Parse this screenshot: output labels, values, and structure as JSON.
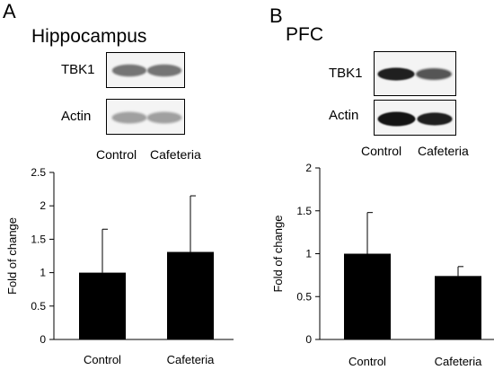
{
  "panels": [
    {
      "letter": "A",
      "region": "Hippocampus",
      "blots": [
        {
          "label": "TBK1",
          "bands": [
            {
              "intensity": 0.55
            },
            {
              "intensity": 0.55
            }
          ]
        },
        {
          "label": "Actin",
          "bands": [
            {
              "intensity": 0.35
            },
            {
              "intensity": 0.35
            }
          ]
        }
      ],
      "lanes": [
        "Control",
        "Cafeteria"
      ]
    },
    {
      "letter": "B",
      "region": "PFC",
      "blots": [
        {
          "label": "TBK1",
          "bands": [
            {
              "intensity": 0.95
            },
            {
              "intensity": 0.7
            }
          ]
        },
        {
          "label": "Actin",
          "bands": [
            {
              "intensity": 1.0
            },
            {
              "intensity": 0.95
            }
          ]
        }
      ],
      "lanes": [
        "Control",
        "Cafeteria"
      ]
    }
  ],
  "chart_data": [
    {
      "type": "bar",
      "title": "",
      "xlabel": "",
      "ylabel": "Fold of change",
      "ylim": [
        0,
        2.5
      ],
      "yticks": [
        "0",
        "0.5",
        "1",
        "1.5",
        "2",
        "2.5"
      ],
      "categories": [
        "Control",
        "Cafeteria"
      ],
      "values": [
        1.0,
        1.31
      ],
      "error": [
        0.65,
        0.84
      ],
      "color": "#000000"
    },
    {
      "type": "bar",
      "title": "",
      "xlabel": "",
      "ylabel": "Fold of change",
      "ylim": [
        0,
        2
      ],
      "yticks": [
        "0",
        "0.5",
        "1",
        "1.5",
        "2"
      ],
      "categories": [
        "Control",
        "Cafeteria"
      ],
      "values": [
        1.0,
        0.74
      ],
      "error": [
        0.48,
        0.11
      ],
      "color": "#000000"
    }
  ]
}
